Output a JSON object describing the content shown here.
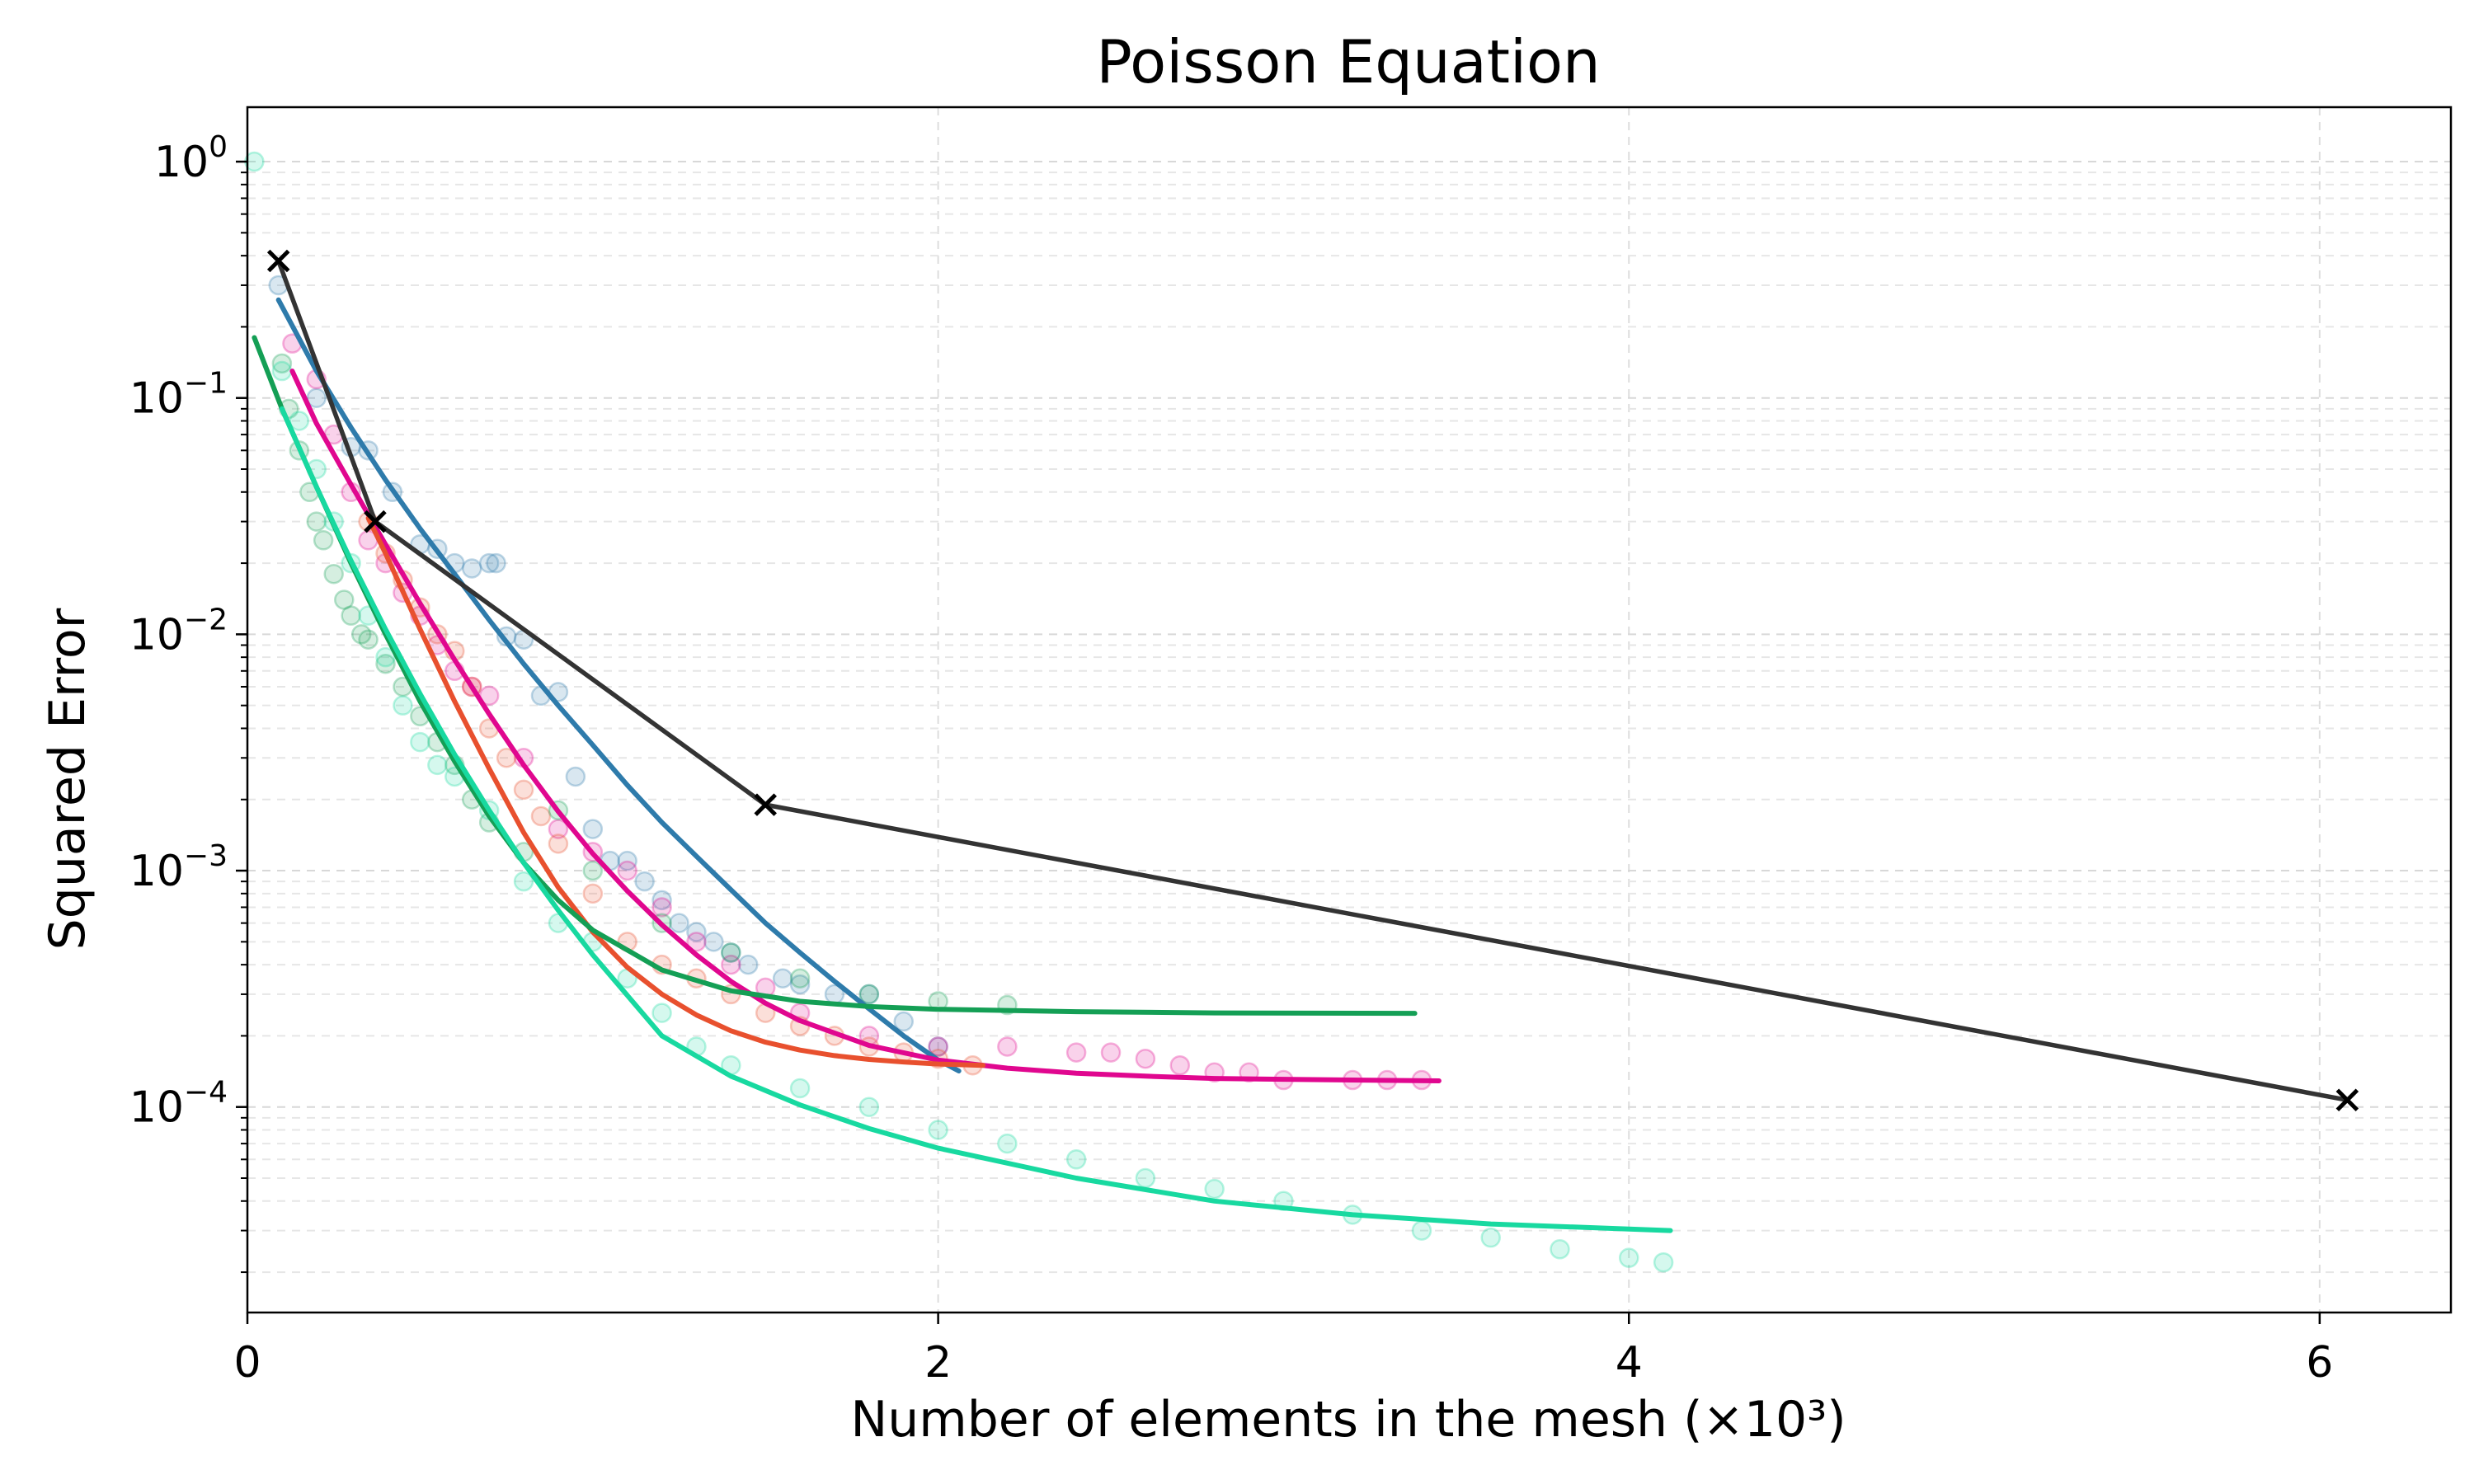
{
  "chart_data": {
    "type": "line",
    "title": "Poisson Equation",
    "xlabel": "Number of elements in the mesh (×10³)",
    "ylabel": "Squared Error",
    "xlim": [
      0,
      6.38
    ],
    "ylim": [
      1.35e-05,
      1.7
    ],
    "yscale": "log",
    "x_ticks": [
      {
        "value": 0,
        "label": "0"
      },
      {
        "value": 2,
        "label": "2"
      },
      {
        "value": 4,
        "label": "4"
      },
      {
        "value": 6,
        "label": "6"
      }
    ],
    "y_ticks": [
      {
        "value": 1,
        "base": "10",
        "exp": "0"
      },
      {
        "value": 0.1,
        "base": "10",
        "exp": "−1"
      },
      {
        "value": 0.01,
        "base": "10",
        "exp": "−2"
      },
      {
        "value": 0.001,
        "base": "10",
        "exp": "−3"
      },
      {
        "value": 0.0001,
        "base": "10",
        "exp": "−4"
      }
    ],
    "grid": true,
    "legend": "none",
    "colors": {
      "blue": "#2e7bab",
      "pink": "#e0078f",
      "red": "#e8502e",
      "green": "#149f55",
      "teal": "#18d9a0",
      "baseline": "#333333"
    },
    "series": [
      {
        "color": "#2e7bab",
        "points": [
          [
            0.09,
            0.3
          ],
          [
            0.2,
            0.1
          ],
          [
            0.3,
            0.062
          ],
          [
            0.35,
            0.06
          ],
          [
            0.42,
            0.04
          ],
          [
            0.5,
            0.024
          ],
          [
            0.55,
            0.023
          ],
          [
            0.6,
            0.02
          ],
          [
            0.65,
            0.019
          ],
          [
            0.7,
            0.02
          ],
          [
            0.72,
            0.02
          ],
          [
            0.75,
            0.0098
          ],
          [
            0.8,
            0.0095
          ],
          [
            0.85,
            0.0055
          ],
          [
            0.9,
            0.0057
          ],
          [
            0.95,
            0.0025
          ],
          [
            1.0,
            0.0015
          ],
          [
            1.05,
            0.0011
          ],
          [
            1.1,
            0.0011
          ],
          [
            1.15,
            0.0009
          ],
          [
            1.2,
            0.00075
          ],
          [
            1.25,
            0.0006
          ],
          [
            1.3,
            0.00055
          ],
          [
            1.35,
            0.0005
          ],
          [
            1.4,
            0.00045
          ],
          [
            1.45,
            0.0004
          ],
          [
            1.55,
            0.00035
          ],
          [
            1.6,
            0.00033
          ],
          [
            1.7,
            0.0003
          ],
          [
            1.8,
            0.0003
          ],
          [
            1.9,
            0.00023
          ],
          [
            2.0,
            0.00018
          ]
        ],
        "fit": [
          [
            0.09,
            0.26
          ],
          [
            0.2,
            0.13
          ],
          [
            0.3,
            0.075
          ],
          [
            0.4,
            0.045
          ],
          [
            0.5,
            0.028
          ],
          [
            0.6,
            0.018
          ],
          [
            0.7,
            0.0115
          ],
          [
            0.8,
            0.0075
          ],
          [
            0.9,
            0.005
          ],
          [
            1.0,
            0.0034
          ],
          [
            1.1,
            0.0023
          ],
          [
            1.2,
            0.0016
          ],
          [
            1.3,
            0.00115
          ],
          [
            1.4,
            0.00083
          ],
          [
            1.5,
            0.0006
          ],
          [
            1.6,
            0.00045
          ],
          [
            1.7,
            0.00034
          ],
          [
            1.8,
            0.00026
          ],
          [
            1.9,
            0.0002
          ],
          [
            2.0,
            0.000158
          ],
          [
            2.06,
            0.000142
          ]
        ]
      },
      {
        "color": "#e0078f",
        "points": [
          [
            0.13,
            0.17
          ],
          [
            0.2,
            0.12
          ],
          [
            0.25,
            0.07
          ],
          [
            0.3,
            0.04
          ],
          [
            0.35,
            0.025
          ],
          [
            0.4,
            0.02
          ],
          [
            0.45,
            0.015
          ],
          [
            0.5,
            0.012
          ],
          [
            0.55,
            0.009
          ],
          [
            0.6,
            0.007
          ],
          [
            0.65,
            0.006
          ],
          [
            0.7,
            0.0055
          ],
          [
            0.8,
            0.003
          ],
          [
            0.9,
            0.0015
          ],
          [
            1.0,
            0.0012
          ],
          [
            1.1,
            0.001
          ],
          [
            1.2,
            0.0007
          ],
          [
            1.3,
            0.0005
          ],
          [
            1.4,
            0.0004
          ],
          [
            1.5,
            0.00032
          ],
          [
            1.6,
            0.00025
          ],
          [
            1.8,
            0.0002
          ],
          [
            2.0,
            0.00018
          ],
          [
            2.2,
            0.00018
          ],
          [
            2.4,
            0.00017
          ],
          [
            2.5,
            0.00017
          ],
          [
            2.6,
            0.00016
          ],
          [
            2.7,
            0.00015
          ],
          [
            2.8,
            0.00014
          ],
          [
            2.9,
            0.00014
          ],
          [
            3.0,
            0.00013
          ],
          [
            3.2,
            0.00013
          ],
          [
            3.3,
            0.00013
          ],
          [
            3.4,
            0.00013
          ]
        ],
        "fit": [
          [
            0.13,
            0.13
          ],
          [
            0.2,
            0.078
          ],
          [
            0.3,
            0.043
          ],
          [
            0.4,
            0.024
          ],
          [
            0.5,
            0.0135
          ],
          [
            0.6,
            0.0078
          ],
          [
            0.7,
            0.0046
          ],
          [
            0.8,
            0.0028
          ],
          [
            0.9,
            0.00178
          ],
          [
            1.0,
            0.00118
          ],
          [
            1.1,
            0.00082
          ],
          [
            1.2,
            0.00059
          ],
          [
            1.3,
            0.00044
          ],
          [
            1.4,
            0.00034
          ],
          [
            1.5,
            0.000275
          ],
          [
            1.6,
            0.000232
          ],
          [
            1.8,
            0.000182
          ],
          [
            2.0,
            0.000158
          ],
          [
            2.2,
            0.000146
          ],
          [
            2.4,
            0.000139
          ],
          [
            2.6,
            0.000135
          ],
          [
            2.8,
            0.000132
          ],
          [
            3.0,
            0.000131
          ],
          [
            3.2,
            0.00013
          ],
          [
            3.45,
            0.000129
          ]
        ]
      },
      {
        "color": "#e8502e",
        "points": [
          [
            0.35,
            0.03
          ],
          [
            0.4,
            0.022
          ],
          [
            0.45,
            0.017
          ],
          [
            0.5,
            0.013
          ],
          [
            0.55,
            0.01
          ],
          [
            0.6,
            0.0085
          ],
          [
            0.65,
            0.006
          ],
          [
            0.7,
            0.004
          ],
          [
            0.75,
            0.003
          ],
          [
            0.8,
            0.0022
          ],
          [
            0.85,
            0.0017
          ],
          [
            0.9,
            0.0013
          ],
          [
            1.0,
            0.0008
          ],
          [
            1.1,
            0.0005
          ],
          [
            1.2,
            0.0004
          ],
          [
            1.3,
            0.00035
          ],
          [
            1.4,
            0.0003
          ],
          [
            1.5,
            0.00025
          ],
          [
            1.6,
            0.00022
          ],
          [
            1.7,
            0.0002
          ],
          [
            1.8,
            0.00018
          ],
          [
            1.9,
            0.00017
          ],
          [
            2.0,
            0.00016
          ],
          [
            2.1,
            0.00015
          ]
        ],
        "fit": [
          [
            0.35,
            0.031
          ],
          [
            0.4,
            0.022
          ],
          [
            0.5,
            0.0105
          ],
          [
            0.6,
            0.0052
          ],
          [
            0.7,
            0.0027
          ],
          [
            0.8,
            0.00145
          ],
          [
            0.9,
            0.00085
          ],
          [
            1.0,
            0.00055
          ],
          [
            1.1,
            0.00039
          ],
          [
            1.2,
            0.0003
          ],
          [
            1.3,
            0.000245
          ],
          [
            1.4,
            0.00021
          ],
          [
            1.5,
            0.000188
          ],
          [
            1.6,
            0.000174
          ],
          [
            1.7,
            0.000165
          ],
          [
            1.8,
            0.000159
          ],
          [
            1.9,
            0.000155
          ],
          [
            2.0,
            0.000152
          ],
          [
            2.13,
            0.00015
          ]
        ]
      },
      {
        "color": "#149f55",
        "points": [
          [
            0.1,
            0.14
          ],
          [
            0.12,
            0.09
          ],
          [
            0.15,
            0.06
          ],
          [
            0.18,
            0.04
          ],
          [
            0.2,
            0.03
          ],
          [
            0.22,
            0.025
          ],
          [
            0.25,
            0.018
          ],
          [
            0.28,
            0.014
          ],
          [
            0.3,
            0.012
          ],
          [
            0.33,
            0.01
          ],
          [
            0.35,
            0.0095
          ],
          [
            0.4,
            0.0075
          ],
          [
            0.45,
            0.006
          ],
          [
            0.5,
            0.0045
          ],
          [
            0.55,
            0.0035
          ],
          [
            0.6,
            0.0028
          ],
          [
            0.65,
            0.002
          ],
          [
            0.7,
            0.0016
          ],
          [
            0.8,
            0.0012
          ],
          [
            0.9,
            0.0018
          ],
          [
            1.0,
            0.001
          ],
          [
            1.2,
            0.0006
          ],
          [
            1.4,
            0.00045
          ],
          [
            1.6,
            0.00035
          ],
          [
            1.8,
            0.0003
          ],
          [
            2.0,
            0.00028
          ],
          [
            2.2,
            0.00027
          ]
        ],
        "fit": [
          [
            0.02,
            0.18
          ],
          [
            0.1,
            0.09
          ],
          [
            0.2,
            0.042
          ],
          [
            0.3,
            0.02
          ],
          [
            0.4,
            0.01
          ],
          [
            0.5,
            0.0052
          ],
          [
            0.6,
            0.0029
          ],
          [
            0.7,
            0.0017
          ],
          [
            0.8,
            0.00108
          ],
          [
            0.9,
            0.00075
          ],
          [
            1.0,
            0.00056
          ],
          [
            1.2,
            0.00038
          ],
          [
            1.4,
            0.00031
          ],
          [
            1.6,
            0.00028
          ],
          [
            1.8,
            0.000266
          ],
          [
            2.0,
            0.000259
          ],
          [
            2.4,
            0.000253
          ],
          [
            2.8,
            0.00025
          ],
          [
            3.38,
            0.000249
          ]
        ]
      },
      {
        "color": "#18d9a0",
        "points": [
          [
            0.02,
            1.0
          ],
          [
            0.1,
            0.13
          ],
          [
            0.15,
            0.08
          ],
          [
            0.2,
            0.05
          ],
          [
            0.25,
            0.03
          ],
          [
            0.3,
            0.02
          ],
          [
            0.35,
            0.012
          ],
          [
            0.4,
            0.008
          ],
          [
            0.45,
            0.005
          ],
          [
            0.5,
            0.0035
          ],
          [
            0.55,
            0.0028
          ],
          [
            0.6,
            0.0025
          ],
          [
            0.7,
            0.0018
          ],
          [
            0.8,
            0.0009
          ],
          [
            0.9,
            0.0006
          ],
          [
            1.0,
            0.0005
          ],
          [
            1.1,
            0.00035
          ],
          [
            1.2,
            0.00025
          ],
          [
            1.3,
            0.00018
          ],
          [
            1.4,
            0.00015
          ],
          [
            1.6,
            0.00012
          ],
          [
            1.8,
            0.0001
          ],
          [
            2.0,
            8e-05
          ],
          [
            2.2,
            7e-05
          ],
          [
            2.4,
            6e-05
          ],
          [
            2.6,
            5e-05
          ],
          [
            2.8,
            4.5e-05
          ],
          [
            3.0,
            4e-05
          ],
          [
            3.2,
            3.5e-05
          ],
          [
            3.4,
            3e-05
          ],
          [
            3.6,
            2.8e-05
          ],
          [
            3.8,
            2.5e-05
          ],
          [
            4.0,
            2.3e-05
          ],
          [
            4.1,
            2.2e-05
          ]
        ],
        "fit": [
          [
            0.1,
            0.09
          ],
          [
            0.2,
            0.042
          ],
          [
            0.3,
            0.0205
          ],
          [
            0.4,
            0.0105
          ],
          [
            0.5,
            0.0056
          ],
          [
            0.6,
            0.0031
          ],
          [
            0.7,
            0.0018
          ],
          [
            0.8,
            0.00108
          ],
          [
            0.9,
            0.00068
          ],
          [
            1.0,
            0.00044
          ],
          [
            1.2,
            0.0002
          ],
          [
            1.4,
            0.000135
          ],
          [
            1.6,
            0.000102
          ],
          [
            1.8,
            8.1e-05
          ],
          [
            2.0,
            6.7e-05
          ],
          [
            2.4,
            5e-05
          ],
          [
            2.8,
            4e-05
          ],
          [
            3.2,
            3.5e-05
          ],
          [
            3.6,
            3.2e-05
          ],
          [
            4.12,
            3e-05
          ]
        ]
      },
      {
        "color": "#333333",
        "marker": "x",
        "points": [
          [
            0.09,
            0.38
          ],
          [
            0.37,
            0.03
          ],
          [
            1.5,
            0.0019
          ],
          [
            6.08,
            0.000107
          ]
        ]
      }
    ]
  }
}
